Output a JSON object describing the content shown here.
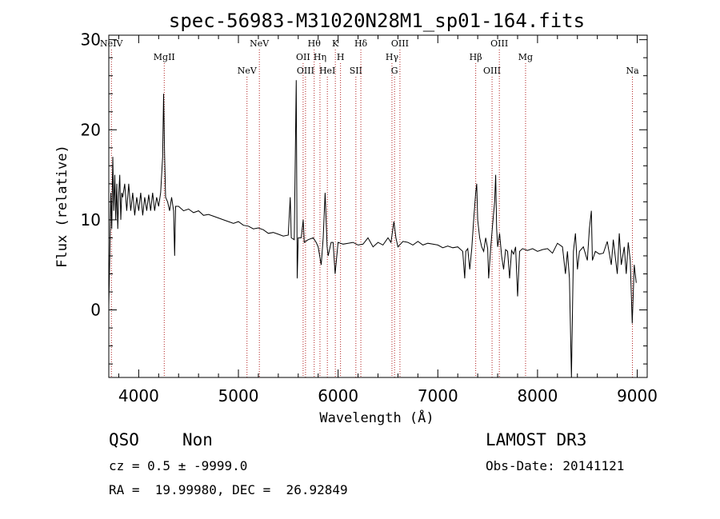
{
  "chart_data": {
    "type": "line",
    "title": "spec-56983-M31020N28M1_sp01-164.fits",
    "xlabel": "Wavelength (Å)",
    "ylabel": "Flux (relative)",
    "xlim": [
      3700,
      9100
    ],
    "ylim": [
      -7.5,
      30.5
    ],
    "x_ticks": [
      4000,
      5000,
      6000,
      7000,
      8000,
      9000
    ],
    "x_tick_labels": [
      "4000",
      "5000",
      "6000",
      "7000",
      "8000",
      "9000"
    ],
    "y_ticks": [
      0,
      10,
      20,
      30
    ],
    "y_tick_labels": [
      "0",
      "10",
      "20",
      "30"
    ],
    "grid": false,
    "series": [
      {
        "color": "#000000",
        "points": [
          [
            3700,
            0.5
          ],
          [
            3710,
            6
          ],
          [
            3720,
            13
          ],
          [
            3730,
            9
          ],
          [
            3740,
            17
          ],
          [
            3750,
            11
          ],
          [
            3760,
            15
          ],
          [
            3770,
            10
          ],
          [
            3780,
            14
          ],
          [
            3790,
            9
          ],
          [
            3800,
            13
          ],
          [
            3810,
            15
          ],
          [
            3820,
            10
          ],
          [
            3830,
            13
          ],
          [
            3840,
            12.5
          ],
          [
            3860,
            14
          ],
          [
            3880,
            11
          ],
          [
            3900,
            14
          ],
          [
            3920,
            11
          ],
          [
            3940,
            13
          ],
          [
            3960,
            10.5
          ],
          [
            3980,
            12.5
          ],
          [
            4000,
            11
          ],
          [
            4020,
            13
          ],
          [
            4040,
            10.5
          ],
          [
            4060,
            12.5
          ],
          [
            4080,
            11
          ],
          [
            4100,
            12.8
          ],
          [
            4120,
            11
          ],
          [
            4140,
            13
          ],
          [
            4160,
            11
          ],
          [
            4180,
            12.5
          ],
          [
            4200,
            11.5
          ],
          [
            4220,
            13
          ],
          [
            4240,
            17
          ],
          [
            4250,
            24
          ],
          [
            4260,
            17
          ],
          [
            4270,
            12.5
          ],
          [
            4290,
            12
          ],
          [
            4310,
            11
          ],
          [
            4330,
            12.5
          ],
          [
            4350,
            11
          ],
          [
            4360,
            6
          ],
          [
            4370,
            11.5
          ],
          [
            4400,
            11.5
          ],
          [
            4450,
            11
          ],
          [
            4500,
            11.2
          ],
          [
            4550,
            10.8
          ],
          [
            4600,
            11
          ],
          [
            4650,
            10.5
          ],
          [
            4700,
            10.6
          ],
          [
            4750,
            10.4
          ],
          [
            4800,
            10.2
          ],
          [
            4850,
            10
          ],
          [
            4900,
            9.8
          ],
          [
            4950,
            9.6
          ],
          [
            5000,
            9.8
          ],
          [
            5050,
            9.4
          ],
          [
            5100,
            9.3
          ],
          [
            5150,
            9.0
          ],
          [
            5200,
            9.1
          ],
          [
            5250,
            8.9
          ],
          [
            5300,
            8.5
          ],
          [
            5350,
            8.6
          ],
          [
            5400,
            8.4
          ],
          [
            5450,
            8.2
          ],
          [
            5500,
            8.3
          ],
          [
            5520,
            12.5
          ],
          [
            5530,
            8
          ],
          [
            5560,
            7.8
          ],
          [
            5580,
            25.5
          ],
          [
            5590,
            3.5
          ],
          [
            5600,
            8
          ],
          [
            5630,
            8
          ],
          [
            5650,
            10
          ],
          [
            5660,
            7.5
          ],
          [
            5700,
            7.8
          ],
          [
            5750,
            8
          ],
          [
            5780,
            7.5
          ],
          [
            5800,
            7
          ],
          [
            5830,
            5
          ],
          [
            5850,
            8
          ],
          [
            5870,
            13
          ],
          [
            5890,
            7
          ],
          [
            5900,
            6
          ],
          [
            5930,
            7.5
          ],
          [
            5950,
            7.5
          ],
          [
            5970,
            4
          ],
          [
            6000,
            7.5
          ],
          [
            6050,
            7.3
          ],
          [
            6100,
            7.4
          ],
          [
            6150,
            7.5
          ],
          [
            6200,
            7.2
          ],
          [
            6250,
            7.3
          ],
          [
            6300,
            8
          ],
          [
            6350,
            7
          ],
          [
            6400,
            7.5
          ],
          [
            6450,
            7.2
          ],
          [
            6500,
            8
          ],
          [
            6530,
            7.5
          ],
          [
            6560,
            9.8
          ],
          [
            6580,
            8
          ],
          [
            6600,
            7
          ],
          [
            6650,
            7.6
          ],
          [
            6700,
            7.5
          ],
          [
            6750,
            7.2
          ],
          [
            6800,
            7.6
          ],
          [
            6850,
            7.2
          ],
          [
            6900,
            7.4
          ],
          [
            6950,
            7.3
          ],
          [
            7000,
            7.2
          ],
          [
            7050,
            6.9
          ],
          [
            7100,
            7.1
          ],
          [
            7150,
            6.9
          ],
          [
            7200,
            7
          ],
          [
            7250,
            6.5
          ],
          [
            7270,
            3.5
          ],
          [
            7280,
            6.5
          ],
          [
            7300,
            6.8
          ],
          [
            7320,
            4.5
          ],
          [
            7340,
            6.8
          ],
          [
            7360,
            10
          ],
          [
            7380,
            13
          ],
          [
            7390,
            14
          ],
          [
            7400,
            10
          ],
          [
            7420,
            8
          ],
          [
            7440,
            7
          ],
          [
            7460,
            6.5
          ],
          [
            7480,
            8
          ],
          [
            7500,
            6.8
          ],
          [
            7510,
            3.5
          ],
          [
            7530,
            6.8
          ],
          [
            7550,
            9.5
          ],
          [
            7570,
            12
          ],
          [
            7580,
            15
          ],
          [
            7590,
            9
          ],
          [
            7600,
            7
          ],
          [
            7620,
            8.5
          ],
          [
            7640,
            6
          ],
          [
            7660,
            4.5
          ],
          [
            7680,
            6.7
          ],
          [
            7700,
            6.5
          ],
          [
            7720,
            3.5
          ],
          [
            7740,
            6.6
          ],
          [
            7760,
            6.2
          ],
          [
            7780,
            7
          ],
          [
            7800,
            1.5
          ],
          [
            7820,
            6.5
          ],
          [
            7850,
            6.8
          ],
          [
            7900,
            6.6
          ],
          [
            7950,
            6.8
          ],
          [
            8000,
            6.5
          ],
          [
            8050,
            6.7
          ],
          [
            8100,
            6.8
          ],
          [
            8150,
            6.3
          ],
          [
            8200,
            7.4
          ],
          [
            8250,
            7
          ],
          [
            8280,
            4
          ],
          [
            8300,
            6.5
          ],
          [
            8320,
            3.5
          ],
          [
            8340,
            -7.5
          ],
          [
            8360,
            6.5
          ],
          [
            8380,
            8.5
          ],
          [
            8400,
            4.5
          ],
          [
            8420,
            6.5
          ],
          [
            8460,
            7
          ],
          [
            8500,
            5.5
          ],
          [
            8520,
            9
          ],
          [
            8540,
            11
          ],
          [
            8550,
            5.5
          ],
          [
            8580,
            6.5
          ],
          [
            8620,
            6.2
          ],
          [
            8660,
            6.3
          ],
          [
            8700,
            7.6
          ],
          [
            8740,
            5
          ],
          [
            8760,
            7.8
          ],
          [
            8800,
            4
          ],
          [
            8820,
            8.5
          ],
          [
            8840,
            5
          ],
          [
            8870,
            7
          ],
          [
            8890,
            4
          ],
          [
            8910,
            7.5
          ],
          [
            8930,
            5.5
          ],
          [
            8950,
            -1.5
          ],
          [
            8970,
            5
          ],
          [
            8990,
            3
          ]
        ]
      }
    ],
    "line_markers": [
      {
        "label": "NeIV",
        "x": 3726
      },
      {
        "label": "MgII",
        "x": 4256
      },
      {
        "label": "NeV",
        "x": 5086
      },
      {
        "label": "NeV",
        "x": 5210
      },
      {
        "label": "OII",
        "x": 5649
      },
      {
        "label": "OIII",
        "x": 5673
      },
      {
        "label": "Hθ",
        "x": 5760
      },
      {
        "label": "Hη",
        "x": 5818
      },
      {
        "label": "HeI",
        "x": 5892
      },
      {
        "label": "K",
        "x": 5972
      },
      {
        "label": "H",
        "x": 6024
      },
      {
        "label": "SII",
        "x": 6178
      },
      {
        "label": "Hδ",
        "x": 6228
      },
      {
        "label": "Hγ",
        "x": 6540
      },
      {
        "label": "G",
        "x": 6566
      },
      {
        "label": "OIII",
        "x": 6620
      },
      {
        "label": "Hβ",
        "x": 7380
      },
      {
        "label": "OIII",
        "x": 7544
      },
      {
        "label": "OIII",
        "x": 7617
      },
      {
        "label": "Mg",
        "x": 7880
      },
      {
        "label": "Na",
        "x": 8952
      }
    ]
  },
  "info": {
    "class": "QSO",
    "subclass": "Non",
    "survey": "LAMOST DR3",
    "cz": "cz = 0.5 ± -9999.0",
    "obs_date": "Obs-Date: 20141121",
    "coords": "RA =  19.99980, DEC =  26.92849"
  }
}
